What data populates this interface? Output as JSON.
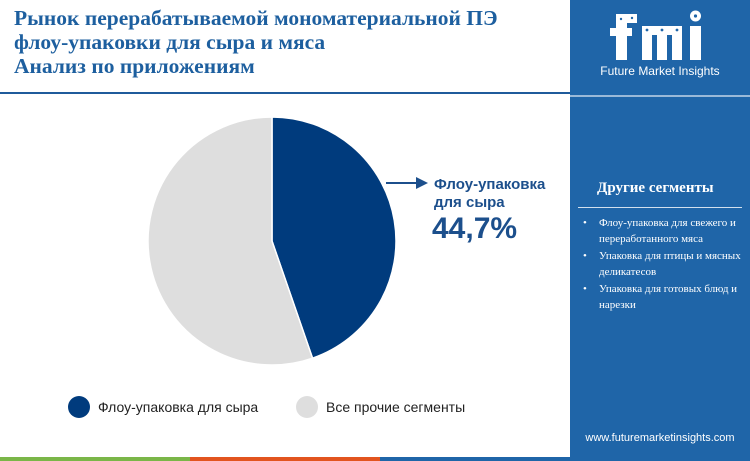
{
  "title_lines": [
    "Рынок перерабатываемой мономатериальной ПЭ",
    "флоу-упаковки для сыра и мяса",
    "Анализ по приложениям"
  ],
  "brand": {
    "logo_text": "fmi",
    "caption": "Future Market Insights",
    "url": "www.futuremarketinsights.com"
  },
  "sidebar": {
    "heading": "Другие сегменты",
    "items": [
      "Флоу-упаковка для свежего и переработанного мяса",
      "Упаковка для птицы и мясных деликатесов",
      "Упаковка для готовых блюд и нарезки"
    ]
  },
  "callout": {
    "label_lines": [
      "Флоу-упаковка",
      "для сыра"
    ],
    "value": "44,7%"
  },
  "legend": {
    "items": [
      {
        "label": "Флоу-упаковка для сыра",
        "color": "#003b7d"
      },
      {
        "label": "Все прочие сегменты",
        "color": "#dedede"
      }
    ]
  },
  "colors": {
    "title": "#1d5f9f",
    "sidebar": "#1f65a8",
    "cheese_slice": "#003b7d",
    "other_slice": "#dedede"
  },
  "chart_data": {
    "type": "pie",
    "categories": [
      "Флоу-упаковка для сыра",
      "Все прочие сегменты"
    ],
    "values": [
      44.7,
      55.3
    ],
    "value_labels": [
      "44,7%",
      ""
    ],
    "colors": [
      "#003b7d",
      "#dedede"
    ],
    "legend_position": "bottom"
  }
}
